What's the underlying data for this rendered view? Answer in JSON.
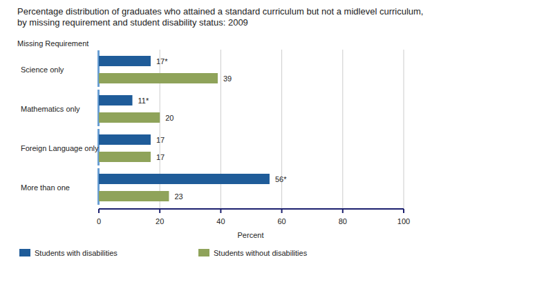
{
  "chart_data": {
    "type": "bar",
    "orientation": "horizontal",
    "title": "Percentage distribution of graduates who attained a standard curriculum but not a midlevel curriculum,",
    "subtitle": "by missing requirement and student disability status: 2009",
    "y_label": "Missing Requirement",
    "x_label": "Percent",
    "categories": [
      "Science only",
      "Mathematics only",
      "Foreign Language only",
      "More than one"
    ],
    "series": [
      {
        "name": "Students with disabilities",
        "color": "#1f5c99",
        "values": [
          17,
          11,
          17,
          56
        ],
        "value_labels": [
          "17*",
          "11*",
          "17",
          "56*"
        ]
      },
      {
        "name": "Students without disabilities",
        "color": "#8fa35a",
        "values": [
          39,
          20,
          17,
          23
        ]
      }
    ],
    "xlim": [
      0,
      100
    ],
    "xticks": [
      0,
      20,
      40,
      60,
      80,
      100
    ],
    "grid": true,
    "data_labels": true,
    "legend": "bottom-left"
  }
}
